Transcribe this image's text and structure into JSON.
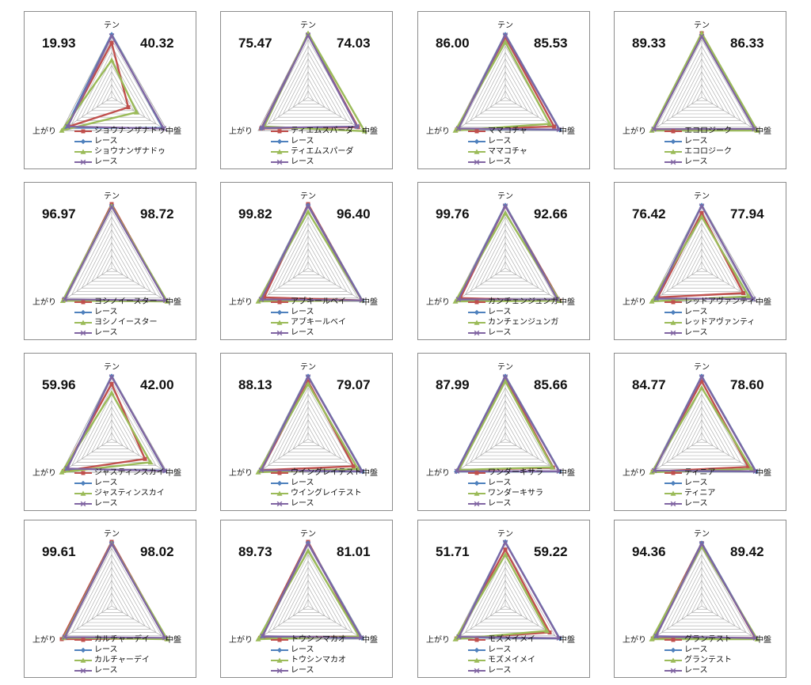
{
  "axes": [
    "テン",
    "中盤",
    "上がり"
  ],
  "colors": {
    "horse": "#c0504d",
    "race_blue": "#4f81bd",
    "horse_green": "#9bbb59",
    "race_purple": "#8064a2",
    "grid": "#a6a6a6"
  },
  "series_legend_suffix": "レース",
  "chart_data": [
    {
      "type": "radar",
      "horse": "ショウナンザナドゥ",
      "score_left": "19.93",
      "score_right": "40.32",
      "axes": [
        "テン",
        "中盤",
        "上がり"
      ],
      "series": [
        {
          "name": "ショウナンザナドゥ",
          "values": [
            85,
            30,
            90
          ]
        },
        {
          "name": "レース",
          "values": [
            98,
            92,
            92
          ]
        },
        {
          "name": "ショウナンザナドゥ",
          "values": [
            58,
            45,
            100
          ]
        },
        {
          "name": "レース",
          "values": [
            96,
            94,
            88
          ]
        }
      ]
    },
    {
      "type": "radar",
      "horse": "ティエムスパーダ",
      "score_left": "75.47",
      "score_right": "74.03",
      "axes": [
        "テン",
        "中盤",
        "上がり"
      ],
      "series": [
        {
          "name": "ティエムスパーダ",
          "values": [
            98,
            90,
            94
          ]
        },
        {
          "name": "レース",
          "values": [
            98,
            88,
            93
          ]
        },
        {
          "name": "ティエムスパーダ",
          "values": [
            100,
            102,
            88
          ]
        },
        {
          "name": "レース",
          "values": [
            97,
            88,
            92
          ]
        }
      ]
    },
    {
      "type": "radar",
      "horse": "ママコチャ",
      "score_left": "86.00",
      "score_right": "85.53",
      "axes": [
        "テン",
        "中盤",
        "上がり"
      ],
      "series": [
        {
          "name": "ママコチャ",
          "values": [
            94,
            88,
            97
          ]
        },
        {
          "name": "レース",
          "values": [
            98,
            98,
            95
          ]
        },
        {
          "name": "ママコチャ",
          "values": [
            86,
            80,
            100
          ]
        },
        {
          "name": "レース",
          "values": [
            97,
            97,
            94
          ]
        }
      ]
    },
    {
      "type": "radar",
      "horse": "エコロジーク",
      "score_left": "89.33",
      "score_right": "86.33",
      "axes": [
        "テン",
        "中盤",
        "上がり"
      ],
      "series": [
        {
          "name": "エコロジーク",
          "values": [
            100,
            98,
            96
          ]
        },
        {
          "name": "レース",
          "values": [
            96,
            96,
            97
          ]
        },
        {
          "name": "エコロジーク",
          "values": [
            100,
            100,
            100
          ]
        },
        {
          "name": "レース",
          "values": [
            95,
            95,
            96
          ]
        }
      ]
    },
    {
      "type": "radar",
      "horse": "ヨシノイースター",
      "score_left": "96.97",
      "score_right": "98.72",
      "axes": [
        "テン",
        "中盤",
        "上がり"
      ],
      "series": [
        {
          "name": "ヨシノイースター",
          "values": [
            100,
            98,
            96
          ]
        },
        {
          "name": "レース",
          "values": [
            97,
            98,
            95
          ]
        },
        {
          "name": "ヨシノイースター",
          "values": [
            97,
            100,
            98
          ]
        },
        {
          "name": "レース",
          "values": [
            96,
            97,
            94
          ]
        }
      ]
    },
    {
      "type": "radar",
      "horse": "アブキールベイ",
      "score_left": "99.82",
      "score_right": "96.40",
      "axes": [
        "テン",
        "中盤",
        "上がり"
      ],
      "series": [
        {
          "name": "アブキールベイ",
          "values": [
            100,
            97,
            88
          ]
        },
        {
          "name": "レース",
          "values": [
            98,
            98,
            95
          ]
        },
        {
          "name": "アブキールベイ",
          "values": [
            88,
            97,
            100
          ]
        },
        {
          "name": "レース",
          "values": [
            97,
            97,
            94
          ]
        }
      ]
    },
    {
      "type": "radar",
      "horse": "カンチェンジュンガ",
      "score_left": "99.76",
      "score_right": "92.66",
      "axes": [
        "テン",
        "中盤",
        "上がり"
      ],
      "series": [
        {
          "name": "カンチェンジュンガ",
          "values": [
            97,
            98,
            90
          ]
        },
        {
          "name": "レース",
          "values": [
            98,
            95,
            95
          ]
        },
        {
          "name": "カンチェンジュンガ",
          "values": [
            86,
            98,
            100
          ]
        },
        {
          "name": "レース",
          "values": [
            97,
            94,
            94
          ]
        }
      ]
    },
    {
      "type": "radar",
      "horse": "レッドアヴァンティ",
      "score_left": "76.42",
      "score_right": "77.94",
      "axes": [
        "テン",
        "中盤",
        "上がり"
      ],
      "series": [
        {
          "name": "レッドアヴァンティ",
          "values": [
            86,
            75,
            88
          ]
        },
        {
          "name": "レース",
          "values": [
            98,
            92,
            92
          ]
        },
        {
          "name": "レッドアヴァンティ",
          "values": [
            80,
            85,
            100
          ]
        },
        {
          "name": "レース",
          "values": [
            97,
            93,
            91
          ]
        }
      ]
    },
    {
      "type": "radar",
      "horse": "ジャスティンスカイ",
      "score_left": "59.96",
      "score_right": "42.00",
      "axes": [
        "テン",
        "中盤",
        "上がり"
      ],
      "series": [
        {
          "name": "ジャスティンスカイ",
          "values": [
            86,
            60,
            96
          ]
        },
        {
          "name": "レース",
          "values": [
            98,
            95,
            90
          ]
        },
        {
          "name": "ジャスティンスカイ",
          "values": [
            72,
            70,
            100
          ]
        },
        {
          "name": "レース",
          "values": [
            97,
            96,
            89
          ]
        }
      ]
    },
    {
      "type": "radar",
      "horse": "ウイングレイテスト",
      "score_left": "88.13",
      "score_right": "79.07",
      "axes": [
        "テン",
        "中盤",
        "上がり"
      ],
      "series": [
        {
          "name": "ウイングレイテスト",
          "values": [
            90,
            82,
            94
          ]
        },
        {
          "name": "レース",
          "values": [
            98,
            98,
            95
          ]
        },
        {
          "name": "ウイングレイテスト",
          "values": [
            86,
            90,
            100
          ]
        },
        {
          "name": "レース",
          "values": [
            97,
            97,
            94
          ]
        }
      ]
    },
    {
      "type": "radar",
      "horse": "ワンダーキサラ",
      "score_left": "87.99",
      "score_right": "85.66",
      "axes": [
        "テン",
        "中盤",
        "上がり"
      ],
      "series": [
        {
          "name": "ワンダーキサラ",
          "values": [
            96,
            86,
            94
          ]
        },
        {
          "name": "レース",
          "values": [
            98,
            98,
            98
          ]
        },
        {
          "name": "ワンダーキサラ",
          "values": [
            90,
            85,
            93
          ]
        },
        {
          "name": "レース",
          "values": [
            97,
            97,
            97
          ]
        }
      ]
    },
    {
      "type": "radar",
      "horse": "ティニア",
      "score_left": "84.77",
      "score_right": "78.60",
      "axes": [
        "テン",
        "中盤",
        "上がり"
      ],
      "series": [
        {
          "name": "ティニア",
          "values": [
            90,
            84,
            98
          ]
        },
        {
          "name": "レース",
          "values": [
            98,
            98,
            96
          ]
        },
        {
          "name": "ティニア",
          "values": [
            80,
            90,
            100
          ]
        },
        {
          "name": "レース",
          "values": [
            97,
            97,
            95
          ]
        }
      ]
    },
    {
      "type": "radar",
      "horse": "カルチャーデイ",
      "score_left": "99.61",
      "score_right": "98.02",
      "axes": [
        "テン",
        "中盤",
        "上がり"
      ],
      "series": [
        {
          "name": "カルチャーデイ",
          "values": [
            100,
            98,
            100
          ]
        },
        {
          "name": "レース",
          "values": [
            98,
            97,
            95
          ]
        },
        {
          "name": "カルチャーデイ",
          "values": [
            97,
            100,
            96
          ]
        },
        {
          "name": "レース",
          "values": [
            97,
            96,
            94
          ]
        }
      ]
    },
    {
      "type": "radar",
      "horse": "トウシンマカオ",
      "score_left": "89.73",
      "score_right": "81.01",
      "axes": [
        "テン",
        "中盤",
        "上がり"
      ],
      "series": [
        {
          "name": "トウシンマカオ",
          "values": [
            100,
            92,
            96
          ]
        },
        {
          "name": "レース",
          "values": [
            98,
            97,
            92
          ]
        },
        {
          "name": "トウシンマカオ",
          "values": [
            86,
            92,
            100
          ]
        },
        {
          "name": "レース",
          "values": [
            97,
            96,
            91
          ]
        }
      ]
    },
    {
      "type": "radar",
      "horse": "モズメイメイ",
      "score_left": "51.71",
      "score_right": "59.22",
      "axes": [
        "テン",
        "中盤",
        "上がり"
      ],
      "series": [
        {
          "name": "モズメイメイ",
          "values": [
            88,
            80,
            98
          ]
        },
        {
          "name": "レース",
          "values": [
            100,
            98,
            94
          ]
        },
        {
          "name": "モズメイメイ",
          "values": [
            80,
            75,
            100
          ]
        },
        {
          "name": "レース",
          "values": [
            99,
            97,
            93
          ]
        }
      ]
    },
    {
      "type": "radar",
      "horse": "グランテスト",
      "score_left": "94.36",
      "score_right": "89.42",
      "axes": [
        "テン",
        "中盤",
        "上がり"
      ],
      "series": [
        {
          "name": "グランテスト",
          "values": [
            98,
            96,
            98
          ]
        },
        {
          "name": "レース",
          "values": [
            98,
            98,
            92
          ]
        },
        {
          "name": "グランテスト",
          "values": [
            93,
            100,
            100
          ]
        },
        {
          "name": "レース",
          "values": [
            97,
            97,
            91
          ]
        }
      ]
    }
  ]
}
